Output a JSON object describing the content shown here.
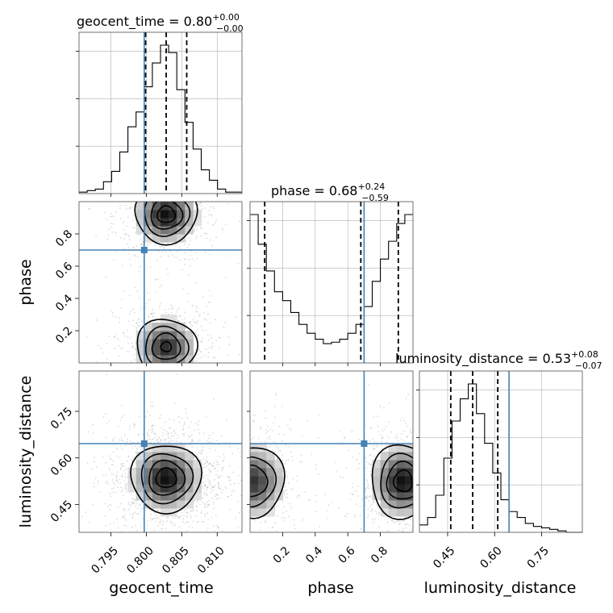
{
  "chart_data": {
    "type": "corner",
    "parameters": [
      "geocent_time",
      "phase",
      "luminosity_distance"
    ],
    "colors": {
      "truth": "#4682b4",
      "hist": "#000000",
      "scatter": "#9a9a9a",
      "grid": "#b0b0b0"
    },
    "diagonal": [
      {
        "parameter": "geocent_time",
        "title": {
          "name": "geocent_time",
          "median": "0.80",
          "upper": "+0.00",
          "lower": "−0.00"
        },
        "range": [
          0.7905,
          0.8135
        ],
        "truth": 0.7997,
        "quantiles": [
          0.7999,
          0.8028,
          0.8057
        ],
        "bins": {
          "edges_start": 0.7905,
          "bin_width": 0.00115,
          "counts": [
            1,
            2,
            3,
            8,
            15,
            28,
            45,
            55,
            72,
            88,
            100,
            95,
            70,
            48,
            30,
            16,
            9,
            3,
            1,
            1
          ]
        },
        "grid": true
      },
      {
        "parameter": "phase",
        "title": {
          "name": "phase",
          "median": "0.68",
          "upper": "+0.24",
          "lower": "−0.59"
        },
        "range": [
          0.0,
          1.0
        ],
        "truth": 0.7,
        "quantiles": [
          0.09,
          0.68,
          0.91
        ],
        "bins": {
          "edges_start": 0.0,
          "bin_width": 0.05,
          "counts": [
            100,
            80,
            62,
            48,
            42,
            34,
            26,
            20,
            16,
            13,
            14,
            16,
            20,
            26,
            38,
            55,
            70,
            82,
            94,
            100
          ]
        },
        "grid": true
      },
      {
        "parameter": "luminosity_distance",
        "title": {
          "name": "luminosity_distance",
          "median": "0.53",
          "upper": "+0.08",
          "lower": "−0.07"
        },
        "range": [
          0.36,
          0.88
        ],
        "truth": 0.646,
        "quantiles": [
          0.46,
          0.53,
          0.61
        ],
        "bins": {
          "edges_start": 0.36,
          "bin_width": 0.026,
          "counts": [
            5,
            10,
            25,
            50,
            75,
            90,
            100,
            80,
            60,
            40,
            22,
            14,
            10,
            6,
            4,
            3,
            2,
            1,
            0,
            0
          ]
        },
        "grid": true
      }
    ],
    "axes": {
      "geocent_time": {
        "label": "geocent_time",
        "ticks": [
          0.795,
          0.8,
          0.805,
          0.81
        ],
        "tick_labels": [
          "0.795",
          "0.800",
          "0.805",
          "0.810"
        ]
      },
      "phase": {
        "label": "phase",
        "ticks": [
          0.2,
          0.4,
          0.6,
          0.8
        ],
        "tick_labels": [
          "0.2",
          "0.4",
          "0.6",
          "0.8"
        ]
      },
      "luminosity_distance": {
        "label": "luminosity_distance",
        "ticks": [
          0.45,
          0.6,
          0.75
        ],
        "tick_labels": [
          "0.45",
          "0.60",
          "0.75"
        ]
      }
    },
    "pairs": [
      {
        "x": "geocent_time",
        "y": "phase",
        "truth": [
          0.7997,
          0.7
        ],
        "blobs": [
          {
            "cx": 0.8028,
            "cy": 0.92,
            "sx": 0.0022,
            "sy": 0.09,
            "w": 1.0
          },
          {
            "cx": 0.8028,
            "cy": 0.1,
            "sx": 0.0022,
            "sy": 0.09,
            "w": 0.9
          }
        ]
      },
      {
        "x": "geocent_time",
        "y": "luminosity_distance",
        "truth": [
          0.7997,
          0.646
        ],
        "blobs": [
          {
            "cx": 0.8028,
            "cy": 0.535,
            "sx": 0.0025,
            "sy": 0.055,
            "w": 1.0
          }
        ]
      },
      {
        "x": "phase",
        "y": "luminosity_distance",
        "truth": [
          0.7,
          0.646
        ],
        "blobs": [
          {
            "cx": 0.02,
            "cy": 0.525,
            "sx": 0.1,
            "sy": 0.06,
            "w": 0.85
          },
          {
            "cx": 0.94,
            "cy": 0.525,
            "sx": 0.1,
            "sy": 0.06,
            "w": 1.0
          }
        ]
      }
    ]
  }
}
